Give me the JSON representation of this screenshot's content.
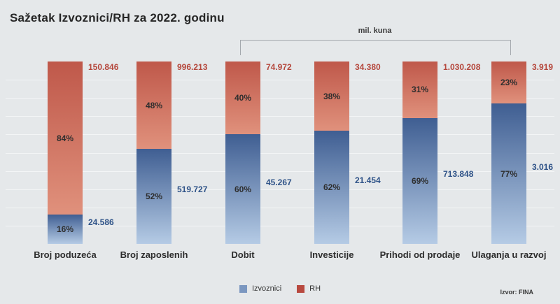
{
  "title": "Sažetak Izvoznici/RH za 2022. godinu",
  "bracket_label": "mil. kuna",
  "source": "Izvor: FINA",
  "legend": [
    {
      "label": "Izvoznici",
      "color": "#7b97c0"
    },
    {
      "label": "RH",
      "color": "#b8493f"
    }
  ],
  "colors": {
    "background": "#e5e8ea",
    "izvoznici_gradient_top": "#3f5e92",
    "izvoznici_gradient_bottom": "#b5cbe5",
    "rh_gradient_top": "#bf584a",
    "rh_gradient_bottom": "#e0917c",
    "value_rh_text": "#b5473c",
    "value_izvoznici_text": "#2f5388"
  },
  "chart_data": {
    "type": "bar",
    "subtype": "stacked-100pct-column",
    "title": "Sažetak Izvoznici/RH za 2022. godinu",
    "unit_annotation": "mil. kuna",
    "unit_applies_to": [
      "Dobit",
      "Investicije",
      "Prihodi od prodaje",
      "Ulaganja u razvoj"
    ],
    "categories": [
      "Broj poduzeća",
      "Broj zaposlenih",
      "Dobit",
      "Investicije",
      "Prihodi od prodaje",
      "Ulaganja u razvoj"
    ],
    "series": [
      {
        "name": "Izvoznici",
        "percents": [
          16,
          52,
          60,
          62,
          69,
          77
        ],
        "values": [
          "24.586",
          "519.727",
          "45.267",
          "21.454",
          "713.848",
          "3.016"
        ]
      },
      {
        "name": "RH",
        "percents": [
          84,
          48,
          40,
          38,
          31,
          23
        ],
        "values": [
          "150.846",
          "996.213",
          "74.972",
          "34.380",
          "1.030.208",
          "3.919"
        ]
      }
    ],
    "legend_position": "bottom",
    "grid": "horizontal-faint",
    "source": "Izvor: FINA"
  }
}
